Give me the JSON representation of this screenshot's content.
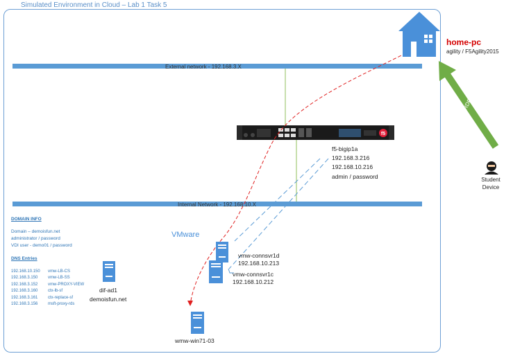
{
  "title": "Simulated Environment in Cloud – Lab 1 Task 5",
  "networks": {
    "external": "External network - 192.168.3.X",
    "internal": "Internal Network - 192.168.10.X"
  },
  "home": {
    "name": "home-pc",
    "credentials": "agility / F5Agility2015"
  },
  "rdp_label": "RDP",
  "student": {
    "line1": "Student",
    "line2": "Device"
  },
  "f5": {
    "name": "f5-bigip1a",
    "ip_external": "192.168.3.216",
    "ip_internal": "192.168.10.216",
    "credentials": "admin / password"
  },
  "domain_info": {
    "heading": "DOMAIN INFO",
    "lines": [
      "Domain – demoisfun.net",
      "administrator / password",
      "VDI user - demo01 / password"
    ]
  },
  "dns": {
    "heading": "DNS Entries",
    "entries": [
      {
        "ip": "192.168.10.150",
        "name": "vmw-LB-CS"
      },
      {
        "ip": "192.168.3.150",
        "name": "vmw-LB-SS"
      },
      {
        "ip": "192.168.3.152",
        "name": "vmw-PROXY-VIEW"
      },
      {
        "ip": "192.168.3.160",
        "name": "ctx-lb-sf"
      },
      {
        "ip": "192.168.3.161",
        "name": "ctx-replace-sf"
      },
      {
        "ip": "192.168.3.156",
        "name": "msft-proxy-rds"
      }
    ]
  },
  "dc": {
    "name": "dif-ad1",
    "domain": "demoisfun.net"
  },
  "vmware_label": "VMware",
  "connsvr1d": {
    "name": "vmw-connsvr1d",
    "ip": "192.168.10.213"
  },
  "connsvr1c": {
    "name": "vmw-connsvr1c",
    "ip": "192.168.10.212"
  },
  "win7": {
    "name": "wmw-win71-03"
  },
  "colors": {
    "network_bar": "#5a9bd5",
    "server": "#4a90d9",
    "house": "#4a90d9",
    "rdp_arrow": "#70ad47",
    "traffic_path": "#e02020",
    "home_label": "#d40000",
    "link_line": "#8fbf5a",
    "dashed_blue": "#5a9bd5"
  },
  "icons": {
    "home": "house-icon",
    "student": "user-icon",
    "server": "server-icon",
    "appliance": "f5-appliance-icon"
  }
}
